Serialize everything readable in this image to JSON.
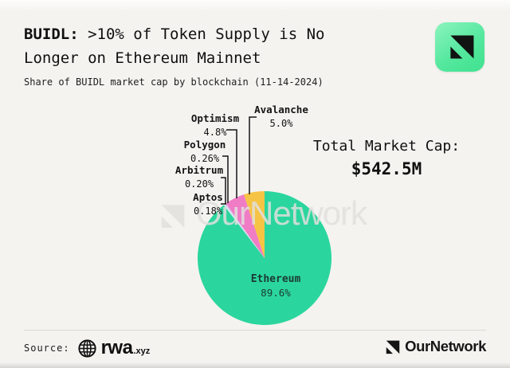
{
  "header": {
    "title_bold": "BUIDL:",
    "title_rest": " >10% of Token Supply is No Longer on Ethereum Mainnet",
    "subtitle": "Share of BUIDL market cap by blockchain (11-14-2024)"
  },
  "stats": {
    "total_label": "Total Market Cap:",
    "total_value": "$542.5M"
  },
  "chart_data": {
    "type": "pie",
    "title": "Share of BUIDL market cap by blockchain",
    "date": "11-14-2024",
    "unit": "% of BUIDL market cap",
    "total_market_cap": "$542.5M",
    "start_angle_deg": 0,
    "direction": "clockwise",
    "slices": [
      {
        "label": "Ethereum",
        "value": 89.6,
        "display": "89.6%",
        "color": "#2BD69E"
      },
      {
        "label": "Aptos",
        "value": 0.18,
        "display": "0.18%",
        "color": "#ECEEED"
      },
      {
        "label": "Arbitrum",
        "value": 0.2,
        "display": "0.20%",
        "color": "#C9DFF5"
      },
      {
        "label": "Polygon",
        "value": 0.26,
        "display": "0.26%",
        "color": "#DCC8F0"
      },
      {
        "label": "Optimism",
        "value": 4.8,
        "display": "4.8%",
        "color": "#F07CC6"
      },
      {
        "label": "Avalanche",
        "value": 5.0,
        "display": "5.0%",
        "color": "#F6C445"
      }
    ],
    "legend_position": "outside-labels-with-leader-lines"
  },
  "watermark": {
    "text": "OurNetwork"
  },
  "footer": {
    "source_label": "Source:",
    "source_name": "rwa",
    "source_tld": ".xyz",
    "brand": "OurNetwork"
  },
  "colors": {
    "background": "#F4F3F0",
    "badge_green_light": "#8DF4BF",
    "badge_green": "#3FE18F",
    "text_primary": "#101010",
    "ethereum_label_text": "#1C3A33",
    "leader_line": "#151515",
    "divider": "#DBDAD8",
    "watermark": "#E0DFDC"
  }
}
